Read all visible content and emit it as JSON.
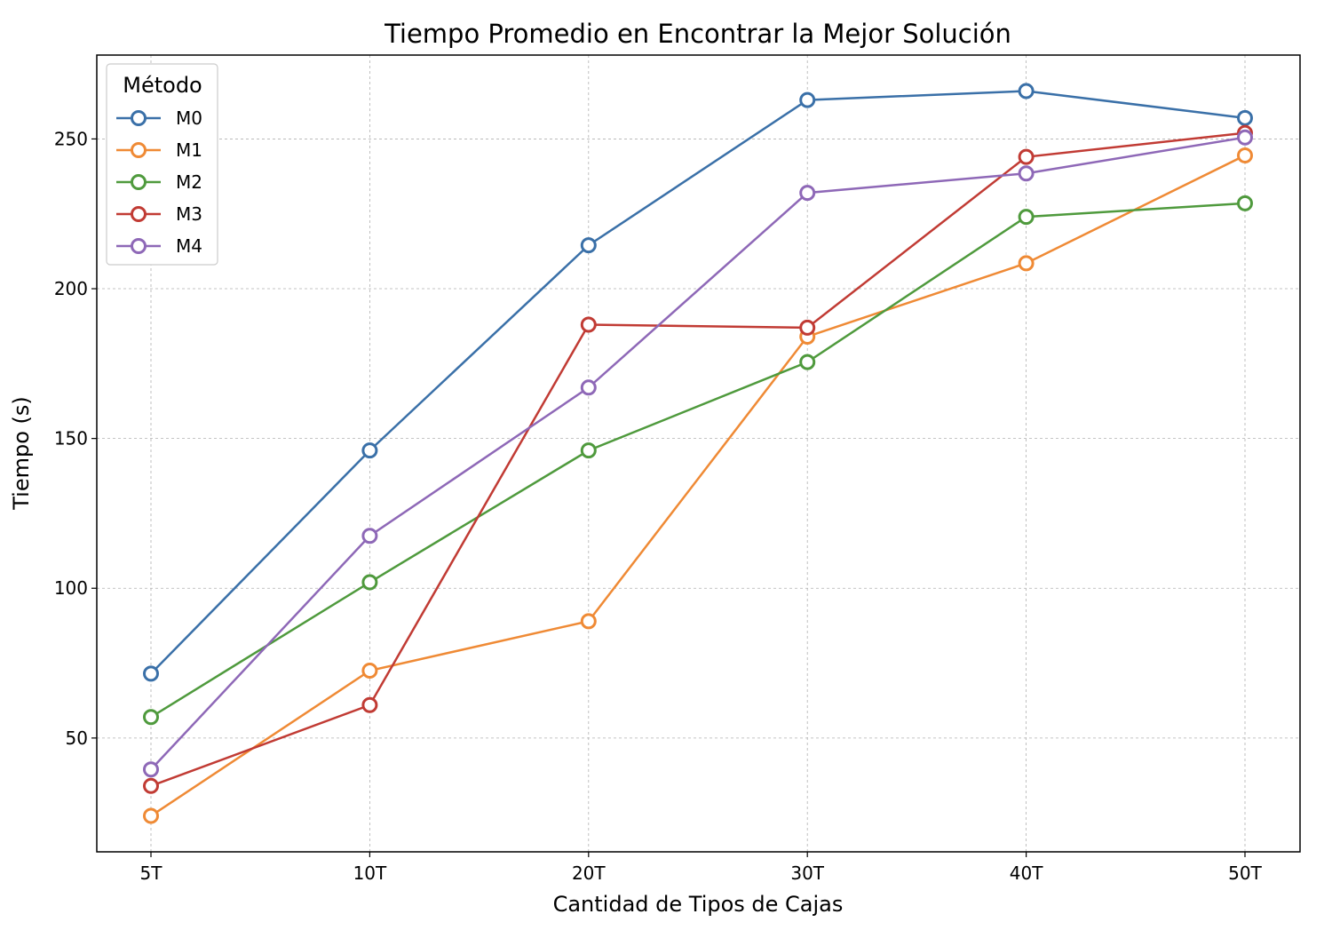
{
  "chart_data": {
    "type": "line",
    "title": "Tiempo Promedio en Encontrar la Mejor Solución",
    "xlabel": "Cantidad de Tipos de Cajas",
    "ylabel": "Tiempo (s)",
    "categories": [
      "5T",
      "10T",
      "20T",
      "30T",
      "40T",
      "50T"
    ],
    "ylim": [
      12,
      278
    ],
    "yticks": [
      50,
      100,
      150,
      200,
      250
    ],
    "grid": true,
    "legend": {
      "title": "Método",
      "placement": "top-left"
    },
    "series": [
      {
        "name": "M0",
        "color": "#3a70a8",
        "values": [
          71.5,
          146,
          214.5,
          263,
          266,
          257
        ]
      },
      {
        "name": "M1",
        "color": "#ef8a35",
        "values": [
          24,
          72.5,
          89,
          184,
          208.5,
          244.5
        ]
      },
      {
        "name": "M2",
        "color": "#4f9a3d",
        "values": [
          57,
          102,
          146,
          175.5,
          224,
          228.5
        ]
      },
      {
        "name": "M3",
        "color": "#c13b34",
        "values": [
          34,
          61,
          188,
          187,
          244,
          252
        ]
      },
      {
        "name": "M4",
        "color": "#8e68b7",
        "values": [
          39.5,
          117.5,
          167,
          232,
          238.5,
          250.5
        ]
      }
    ]
  }
}
